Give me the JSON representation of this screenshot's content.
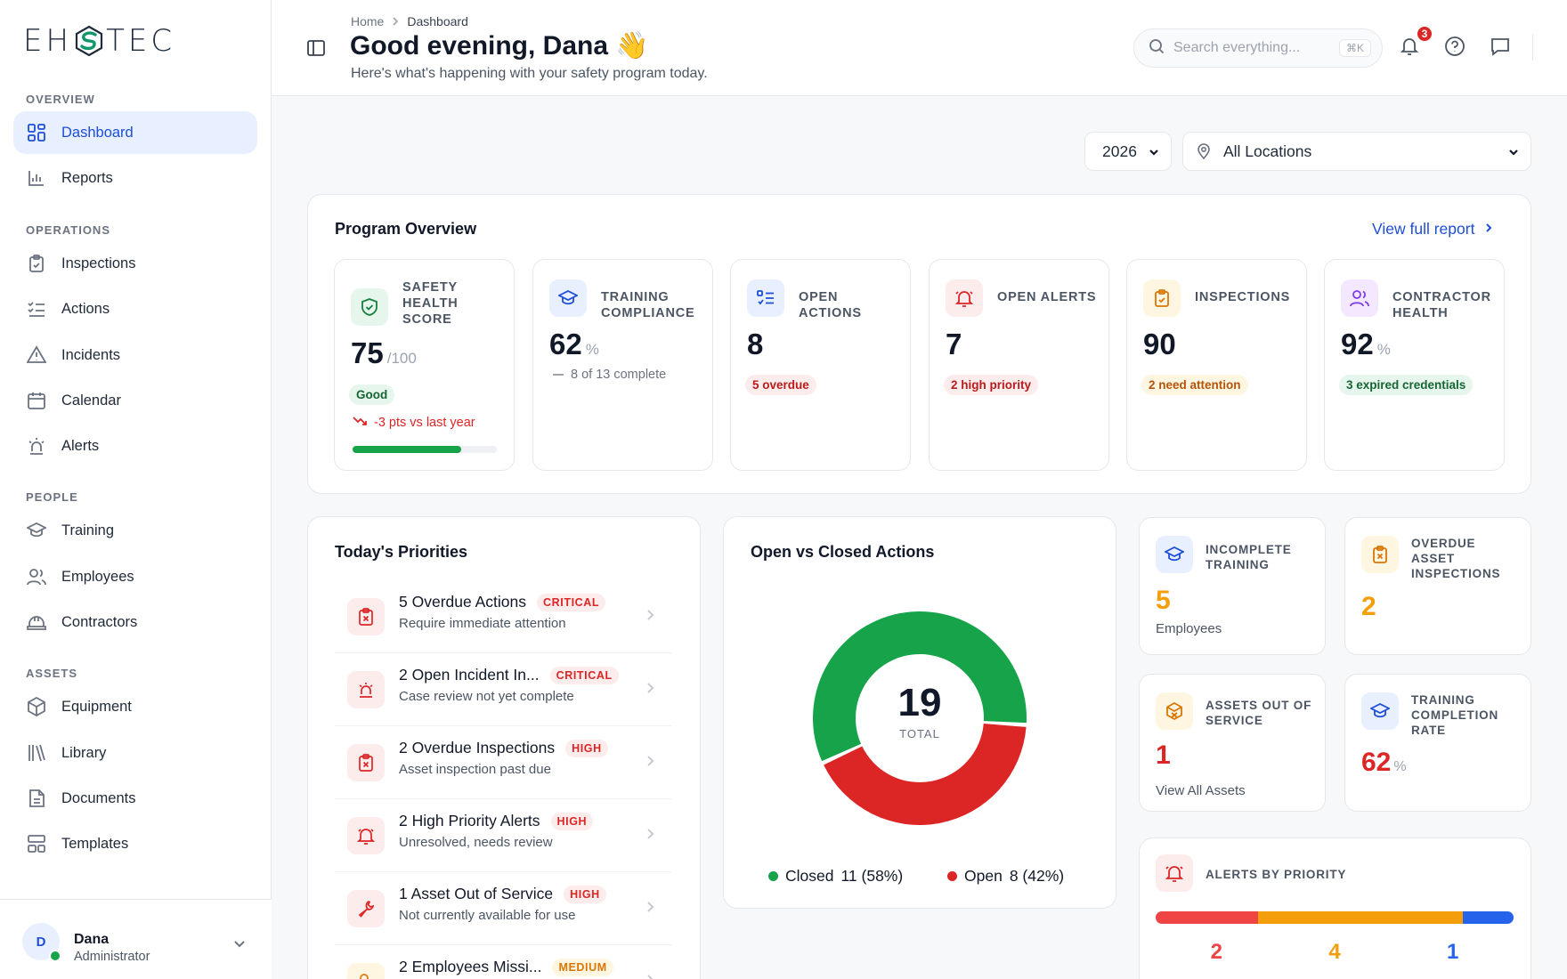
{
  "brand": {
    "left": "EH",
    "right": "TEC"
  },
  "sidebar": {
    "sections": [
      {
        "title": "OVERVIEW",
        "items": [
          {
            "label": "Dashboard",
            "active": true
          },
          {
            "label": "Reports"
          }
        ]
      },
      {
        "title": "OPERATIONS",
        "items": [
          {
            "label": "Inspections"
          },
          {
            "label": "Actions"
          },
          {
            "label": "Incidents"
          },
          {
            "label": "Calendar"
          },
          {
            "label": "Alerts"
          }
        ]
      },
      {
        "title": "PEOPLE",
        "items": [
          {
            "label": "Training"
          },
          {
            "label": "Employees"
          },
          {
            "label": "Contractors"
          }
        ]
      },
      {
        "title": "ASSETS",
        "items": [
          {
            "label": "Equipment"
          },
          {
            "label": "Library"
          },
          {
            "label": "Documents"
          },
          {
            "label": "Templates"
          }
        ]
      }
    ],
    "user": {
      "initial": "D",
      "name": "Dana",
      "role": "Administrator"
    }
  },
  "header": {
    "breadcrumb": [
      "Home",
      "Dashboard"
    ],
    "greeting": "Good evening, Dana 👋",
    "subtitle": "Here's what's happening with your safety program today.",
    "search_placeholder": "Search everything...",
    "search_shortcut": "⌘K",
    "notification_count": "3"
  },
  "filters": {
    "year": "2026",
    "location": "All Locations"
  },
  "overview": {
    "title": "Program Overview",
    "link": "View full report",
    "stats": [
      {
        "label": [
          "SAFETY",
          "HEALTH",
          "SCORE"
        ],
        "value": "75",
        "unit": "/100",
        "pill": "Good",
        "trend": "-3 pts vs last year",
        "progress": 0.75
      },
      {
        "label": [
          "TRAINING",
          "COMPLIANCE"
        ],
        "value": "62",
        "unit": "%",
        "note": "8 of 13 complete"
      },
      {
        "label": [
          "OPEN",
          "ACTIONS"
        ],
        "value": "8",
        "pill": "5 overdue"
      },
      {
        "label": [
          "OPEN ALERTS"
        ],
        "value": "7",
        "pill": "2 high priority"
      },
      {
        "label": [
          "INSPECTIONS"
        ],
        "value": "90",
        "pill": "2 need attention"
      },
      {
        "label": [
          "CONTRACTOR",
          "HEALTH"
        ],
        "value": "92",
        "unit": "%",
        "pill": "3 expired credentials"
      }
    ]
  },
  "priorities": {
    "title": "Today's Priorities",
    "items": [
      {
        "title": "5 Overdue Actions",
        "tag": "CRITICAL",
        "desc": "Require immediate attention"
      },
      {
        "title": "2 Open Incident In...",
        "tag": "CRITICAL",
        "desc": "Case review not yet complete"
      },
      {
        "title": "2 Overdue Inspections",
        "tag": "HIGH",
        "desc": "Asset inspection past due"
      },
      {
        "title": "2 High Priority Alerts",
        "tag": "HIGH",
        "desc": "Unresolved, needs review"
      },
      {
        "title": "1 Asset Out of Service",
        "tag": "HIGH",
        "desc": "Not currently available for use"
      },
      {
        "title": "2 Employees Missi...",
        "tag": "MEDIUM",
        "desc": ""
      }
    ]
  },
  "chart_data": {
    "type": "pie",
    "title": "Open vs Closed Actions",
    "center_value": "19",
    "center_label": "TOTAL",
    "slices": [
      {
        "name": "Closed",
        "value": 11,
        "pct": "58%",
        "color": "#16a34a"
      },
      {
        "name": "Open",
        "value": 8,
        "pct": "42%",
        "color": "#dc2626"
      }
    ]
  },
  "legend": {
    "closed": "Closed",
    "closed_value": "11 (58%)",
    "open": "Open",
    "open_value": "8 (42%)"
  },
  "minis": {
    "incomplete_training": {
      "label": [
        "INCOMPLETE",
        "TRAINING"
      ],
      "value": "5",
      "sub": "Employees"
    },
    "overdue_asset": {
      "label": [
        "OVERDUE",
        "ASSET",
        "INSPECTIONS"
      ],
      "value": "2"
    },
    "assets_out": {
      "label": [
        "ASSETS OUT OF",
        "SERVICE"
      ],
      "value": "1",
      "link": "View All Assets"
    },
    "training_rate": {
      "label": [
        "TRAINING",
        "COMPLETION",
        "RATE"
      ],
      "value": "62",
      "unit": "%"
    }
  },
  "alerts_priority": {
    "title": "ALERTS BY PRIORITY",
    "segments": [
      {
        "value": 2,
        "color": "#ef4444"
      },
      {
        "value": 4,
        "color": "#f59e0b"
      },
      {
        "value": 1,
        "color": "#2563eb"
      }
    ]
  }
}
